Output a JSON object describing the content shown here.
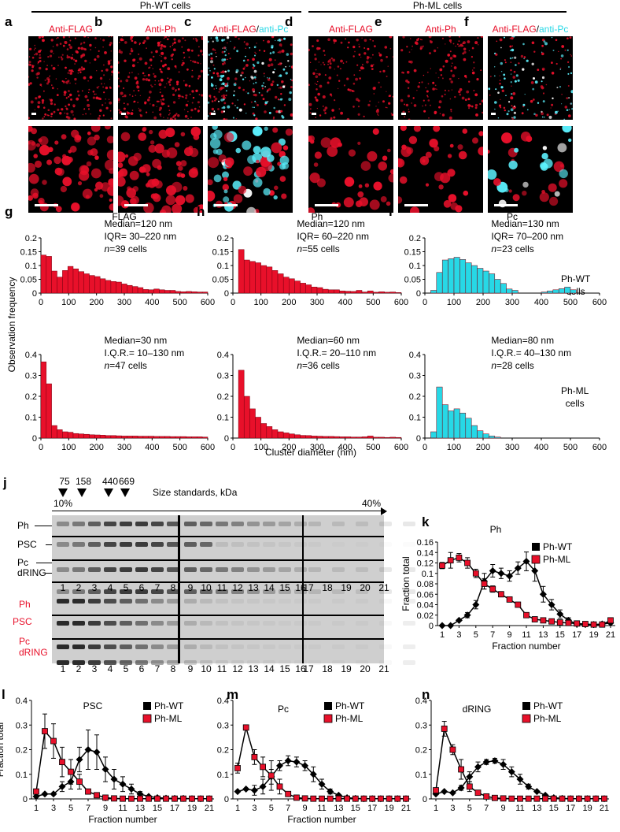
{
  "top": {
    "group_wt": "Ph-WT cells",
    "group_ml": "Ph-ML cells",
    "panels": [
      {
        "letter": "a",
        "title": [
          {
            "t": "Anti-FLAG",
            "c": "red"
          }
        ]
      },
      {
        "letter": "b",
        "title": [
          {
            "t": "Anti-Ph",
            "c": "red"
          }
        ]
      },
      {
        "letter": "c",
        "title": [
          {
            "t": "Anti-FLAG",
            "c": "red"
          },
          {
            "t": "/",
            "c": "black"
          },
          {
            "t": "anti-Pc",
            "c": "cyan"
          }
        ]
      },
      {
        "letter": "d",
        "title": [
          {
            "t": "Anti-FLAG",
            "c": "red"
          }
        ]
      },
      {
        "letter": "e",
        "title": [
          {
            "t": "Anti-Ph",
            "c": "red"
          }
        ]
      },
      {
        "letter": "f",
        "title": [
          {
            "t": "Anti-FLAG",
            "c": "red"
          },
          {
            "t": "/",
            "c": "black"
          },
          {
            "t": "anti-Pc",
            "c": "cyan"
          }
        ]
      }
    ]
  },
  "hist": {
    "ylabel": "Observation frequency",
    "xlabel": "Cluster diameter (nm)",
    "row_wt": [
      "Ph-WT",
      "cells"
    ],
    "row_ml": [
      "Ph-ML",
      "cells"
    ],
    "colors": {
      "red": "#e8102a",
      "cyan": "#27d8e6"
    }
  },
  "chart_data": [
    {
      "id": "g-top",
      "letter": "g",
      "title": "FLAG",
      "type": "bar",
      "color": "red",
      "xlim": [
        0,
        600
      ],
      "ylim": [
        0,
        0.2
      ],
      "yticks": [
        "0",
        "0.05",
        "0.1",
        "0.15",
        "0.2"
      ],
      "xticks": [
        "0",
        "100",
        "200",
        "300",
        "400",
        "500",
        "600"
      ],
      "stats": [
        "Median=120 nm",
        "IQR= 30–220 nm",
        "n=39 cells"
      ],
      "values": [
        0.138,
        0.133,
        0.08,
        0.058,
        0.082,
        0.097,
        0.088,
        0.078,
        0.07,
        0.064,
        0.06,
        0.052,
        0.046,
        0.042,
        0.04,
        0.033,
        0.028,
        0.024,
        0.02,
        0.013,
        0.012,
        0.015,
        0.012,
        0.01,
        0.01,
        0.006,
        0.005,
        0.006,
        0.005,
        0.004,
        0.004
      ]
    },
    {
      "id": "g-bot",
      "letter": "",
      "title": "",
      "type": "bar",
      "color": "red",
      "xlim": [
        0,
        600
      ],
      "ylim": [
        0,
        0.4
      ],
      "yticks": [
        "0",
        "0.1",
        "0.2",
        "0.3",
        "0.4"
      ],
      "xticks": [
        "0",
        "100",
        "200",
        "300",
        "400",
        "500",
        "600"
      ],
      "stats": [
        "Median=30 nm",
        "I.Q.R.= 10–130 nm",
        "n=47 cells"
      ],
      "values": [
        0.365,
        0.26,
        0.06,
        0.04,
        0.03,
        0.028,
        0.022,
        0.02,
        0.018,
        0.016,
        0.015,
        0.014,
        0.012,
        0.012,
        0.011,
        0.01,
        0.01,
        0.01,
        0.009,
        0.009,
        0.009,
        0.008,
        0.008,
        0.008,
        0.007,
        0.007,
        0.007,
        0.006,
        0.006,
        0.006,
        0.005
      ]
    },
    {
      "id": "h-top",
      "letter": "h",
      "title": "Ph",
      "type": "bar",
      "color": "red",
      "xlim": [
        0,
        600
      ],
      "ylim": [
        0,
        0.2
      ],
      "yticks": [
        "0",
        "0.05",
        "0.1",
        "0.15",
        "0.2"
      ],
      "xticks": [
        "0",
        "100",
        "200",
        "300",
        "400",
        "500",
        "600"
      ],
      "stats": [
        "Median=120 nm",
        "IQR= 60–220 nm",
        "n=55 cells"
      ],
      "values": [
        0.0,
        0.158,
        0.12,
        0.115,
        0.11,
        0.1,
        0.095,
        0.082,
        0.07,
        0.058,
        0.052,
        0.044,
        0.036,
        0.03,
        0.022,
        0.02,
        0.014,
        0.012,
        0.012,
        0.008,
        0.007,
        0.006,
        0.01,
        0.004,
        0.008,
        0.003,
        0.005,
        0.003,
        0.004,
        0.002
      ]
    },
    {
      "id": "h-bot",
      "letter": "",
      "title": "",
      "type": "bar",
      "color": "red",
      "xlim": [
        0,
        600
      ],
      "ylim": [
        0,
        0.4
      ],
      "yticks": [
        "0",
        "0.1",
        "0.2",
        "0.3",
        "0.4"
      ],
      "xticks": [
        "0",
        "100",
        "200",
        "300",
        "400",
        "500",
        "600"
      ],
      "stats": [
        "Median=60 nm",
        "I.Q.R.= 20–110 nm",
        "n=36 cells"
      ],
      "values": [
        0.0,
        0.325,
        0.2,
        0.14,
        0.1,
        0.07,
        0.055,
        0.04,
        0.03,
        0.025,
        0.02,
        0.016,
        0.013,
        0.012,
        0.01,
        0.009,
        0.008,
        0.008,
        0.007,
        0.006,
        0.006,
        0.005,
        0.005,
        0.006,
        0.01,
        0.004,
        0.004,
        0.003,
        0.004,
        0.003
      ]
    },
    {
      "id": "i-top",
      "letter": "i",
      "title": "Pc",
      "type": "bar",
      "color": "cyan",
      "xlim": [
        0,
        600
      ],
      "ylim": [
        0,
        0.2
      ],
      "yticks": [
        "0",
        "0.05",
        "0.1",
        "0.15",
        "0.2"
      ],
      "xticks": [
        "0",
        "100",
        "200",
        "300",
        "400",
        "500",
        "600"
      ],
      "stats": [
        "Median=130 nm",
        "IQR= 70–200 nm",
        "n=23 cells"
      ],
      "values": [
        0.0,
        0.01,
        0.075,
        0.12,
        0.125,
        0.13,
        0.122,
        0.11,
        0.1,
        0.09,
        0.08,
        0.07,
        0.05,
        0.035,
        0.015,
        0.01,
        0.0,
        0.0,
        0.0,
        0.0,
        0.004,
        0.008,
        0.012,
        0.016,
        0.022,
        0.012,
        0.0,
        0.0,
        0.0,
        0.0
      ]
    },
    {
      "id": "i-bot",
      "letter": "",
      "title": "",
      "type": "bar",
      "color": "cyan",
      "xlim": [
        0,
        600
      ],
      "ylim": [
        0,
        0.4
      ],
      "yticks": [
        "0",
        "0.1",
        "0.2",
        "0.3",
        "0.4"
      ],
      "xticks": [
        "0",
        "100",
        "200",
        "300",
        "400",
        "500",
        "600"
      ],
      "stats": [
        "Median=80 nm",
        "I.Q.R.= 40–130 nm",
        "n=28 cells"
      ],
      "values": [
        0.0,
        0.03,
        0.245,
        0.16,
        0.13,
        0.14,
        0.12,
        0.095,
        0.06,
        0.035,
        0.02,
        0.01,
        0.005,
        0.0,
        0.0,
        0.0,
        0.0,
        0.0,
        0.0,
        0.0,
        0.0,
        0.0,
        0.0,
        0.0,
        0.0,
        0.0,
        0.0,
        0.0,
        0.0,
        0.0
      ]
    },
    {
      "id": "k",
      "letter": "k",
      "title": "Ph",
      "type": "line",
      "xlabel": "Fraction number",
      "ylabel": "Fraction total",
      "ylim": [
        0,
        0.16
      ],
      "yticks": [
        "0",
        "0.02",
        "0.04",
        "0.06",
        "0.08",
        "0.1",
        "0.12",
        "0.14",
        "0.16"
      ],
      "xticks": [
        "1",
        "3",
        "5",
        "7",
        "9",
        "11",
        "13",
        "15",
        "17",
        "19",
        "21"
      ],
      "series": [
        {
          "name": "Ph-WT",
          "color": "#000000",
          "marker": "diamond",
          "values": [
            0.0,
            0.0,
            0.01,
            0.02,
            0.04,
            0.085,
            0.105,
            0.1,
            0.095,
            0.11,
            0.123,
            0.105,
            0.06,
            0.04,
            0.022,
            0.01,
            0.003,
            0.002,
            0.002,
            0.003,
            0.005
          ],
          "err": [
            0,
            0,
            0,
            0.005,
            0.008,
            0.015,
            0.012,
            0.01,
            0.01,
            0.012,
            0.018,
            0.02,
            0.015,
            0.01,
            0.008,
            0.005,
            0,
            0,
            0,
            0,
            0
          ]
        },
        {
          "name": "Ph-ML",
          "color": "#e8102a",
          "marker": "square",
          "values": [
            0.115,
            0.125,
            0.13,
            0.12,
            0.1,
            0.08,
            0.07,
            0.06,
            0.05,
            0.04,
            0.02,
            0.012,
            0.01,
            0.008,
            0.006,
            0.005,
            0.004,
            0.003,
            0.002,
            0.002,
            0.01
          ],
          "err": [
            0.006,
            0.015,
            0.008,
            0.01,
            0.008,
            0.01,
            0.006,
            0.005,
            0.004,
            0.004,
            0.003,
            0.002,
            0,
            0,
            0,
            0,
            0,
            0,
            0,
            0,
            0
          ]
        }
      ]
    },
    {
      "id": "l",
      "letter": "l",
      "title": "PSC",
      "type": "line",
      "xlabel": "Fraction number",
      "ylabel": "Fraction total",
      "ylim": [
        0,
        0.4
      ],
      "yticks": [
        "0",
        "0.1",
        "0.2",
        "0.3",
        "0.4"
      ],
      "xticks": [
        "1",
        "3",
        "5",
        "7",
        "9",
        "11",
        "13",
        "15",
        "17",
        "19",
        "21"
      ],
      "series": [
        {
          "name": "Ph-WT",
          "color": "#000000",
          "marker": "diamond",
          "values": [
            0.01,
            0.02,
            0.02,
            0.05,
            0.07,
            0.16,
            0.2,
            0.19,
            0.12,
            0.08,
            0.06,
            0.04,
            0.02,
            0.01,
            0.005,
            0.003,
            0.002,
            0.002,
            0.001,
            0.001,
            0.001
          ],
          "err": [
            0,
            0,
            0,
            0.02,
            0.03,
            0.05,
            0.08,
            0.07,
            0.05,
            0.04,
            0.03,
            0.02,
            0.01,
            0,
            0,
            0,
            0,
            0,
            0,
            0,
            0
          ]
        },
        {
          "name": "Ph-ML",
          "color": "#e8102a",
          "marker": "square",
          "values": [
            0.03,
            0.275,
            0.235,
            0.15,
            0.11,
            0.07,
            0.03,
            0.015,
            0.005,
            0.002,
            0.001,
            0.001,
            0.001,
            0.001,
            0.001,
            0.001,
            0.001,
            0.001,
            0.001,
            0.001,
            0.001
          ],
          "err": [
            0,
            0.07,
            0.07,
            0.06,
            0.05,
            0.03,
            0.01,
            0,
            0,
            0,
            0,
            0,
            0,
            0,
            0,
            0,
            0,
            0,
            0,
            0,
            0
          ]
        }
      ]
    },
    {
      "id": "m",
      "letter": "m",
      "title": "Pc",
      "type": "line",
      "xlabel": "Fraction number",
      "ylabel": "",
      "ylim": [
        0,
        0.4
      ],
      "yticks": [
        "0",
        "0.1",
        "0.2",
        "0.3",
        "0.4"
      ],
      "xticks": [
        "1",
        "3",
        "5",
        "7",
        "9",
        "11",
        "13",
        "15",
        "17",
        "19",
        "21"
      ],
      "series": [
        {
          "name": "Ph-WT",
          "color": "#000000",
          "marker": "diamond",
          "values": [
            0.03,
            0.04,
            0.035,
            0.05,
            0.09,
            0.135,
            0.155,
            0.15,
            0.135,
            0.1,
            0.06,
            0.03,
            0.015,
            0.005,
            0.002,
            0.001,
            0.001,
            0.001,
            0.001,
            0.001,
            0.001
          ],
          "err": [
            0,
            0,
            0.02,
            0.03,
            0.03,
            0.02,
            0.02,
            0.02,
            0.02,
            0.03,
            0.02,
            0.01,
            0,
            0,
            0,
            0,
            0,
            0,
            0,
            0,
            0
          ]
        },
        {
          "name": "Ph-ML",
          "color": "#e8102a",
          "marker": "square",
          "values": [
            0.125,
            0.29,
            0.17,
            0.13,
            0.095,
            0.05,
            0.02,
            0.005,
            0.002,
            0.001,
            0.001,
            0.001,
            0.001,
            0.001,
            0.001,
            0.001,
            0.001,
            0.001,
            0.001,
            0.001,
            0.001
          ],
          "err": [
            0.02,
            0,
            0.03,
            0.04,
            0.06,
            0.03,
            0.01,
            0,
            0,
            0,
            0,
            0,
            0,
            0,
            0,
            0,
            0,
            0,
            0,
            0,
            0
          ]
        }
      ]
    },
    {
      "id": "n",
      "letter": "n",
      "title": "dRING",
      "type": "line",
      "xlabel": "",
      "ylabel": "",
      "ylim": [
        0,
        0.4
      ],
      "yticks": [
        "0",
        "0.1",
        "0.2",
        "0.3",
        "0.4"
      ],
      "xticks": [
        "1",
        "3",
        "5",
        "7",
        "9",
        "11",
        "13",
        "15",
        "17",
        "19",
        "21"
      ],
      "series": [
        {
          "name": "Ph-WT",
          "color": "#000000",
          "marker": "diamond",
          "values": [
            0.02,
            0.03,
            0.025,
            0.045,
            0.09,
            0.13,
            0.15,
            0.155,
            0.14,
            0.11,
            0.08,
            0.05,
            0.03,
            0.015,
            0.005,
            0.002,
            0.001,
            0.001,
            0.001,
            0.001,
            0.001
          ],
          "err": [
            0,
            0,
            0,
            0.01,
            0.02,
            0.02,
            0.01,
            0.01,
            0.02,
            0.02,
            0.02,
            0.01,
            0,
            0,
            0,
            0,
            0,
            0,
            0,
            0,
            0
          ]
        },
        {
          "name": "Ph-ML",
          "color": "#e8102a",
          "marker": "square",
          "values": [
            0.035,
            0.285,
            0.2,
            0.12,
            0.05,
            0.025,
            0.01,
            0.004,
            0.002,
            0.001,
            0.001,
            0.001,
            0.001,
            0.001,
            0.001,
            0.001,
            0.001,
            0.001,
            0.001,
            0.001,
            0.001
          ],
          "err": [
            0,
            0.03,
            0.02,
            0.04,
            0.02,
            0.01,
            0,
            0,
            0,
            0,
            0,
            0,
            0,
            0,
            0,
            0,
            0,
            0,
            0,
            0,
            0
          ]
        }
      ]
    }
  ],
  "blot": {
    "letter": "j",
    "standards": [
      "75",
      "158",
      "440",
      "669"
    ],
    "standards_label": "Size standards, kDa",
    "grad_start": "10%",
    "grad_end": "40%",
    "rows_wt": [
      "Ph",
      "PSC",
      "Pc",
      "dRING"
    ],
    "rows_ml": [
      "Ph",
      "PSC",
      "Pc",
      "dRING"
    ],
    "lanes_a": [
      "1",
      "2",
      "3",
      "4",
      "5",
      "6",
      "7",
      "8"
    ],
    "lanes_b": [
      "9",
      "10",
      "11",
      "12",
      "13",
      "14",
      "15",
      "16",
      "17",
      "18",
      "19",
      "20",
      "21"
    ]
  }
}
